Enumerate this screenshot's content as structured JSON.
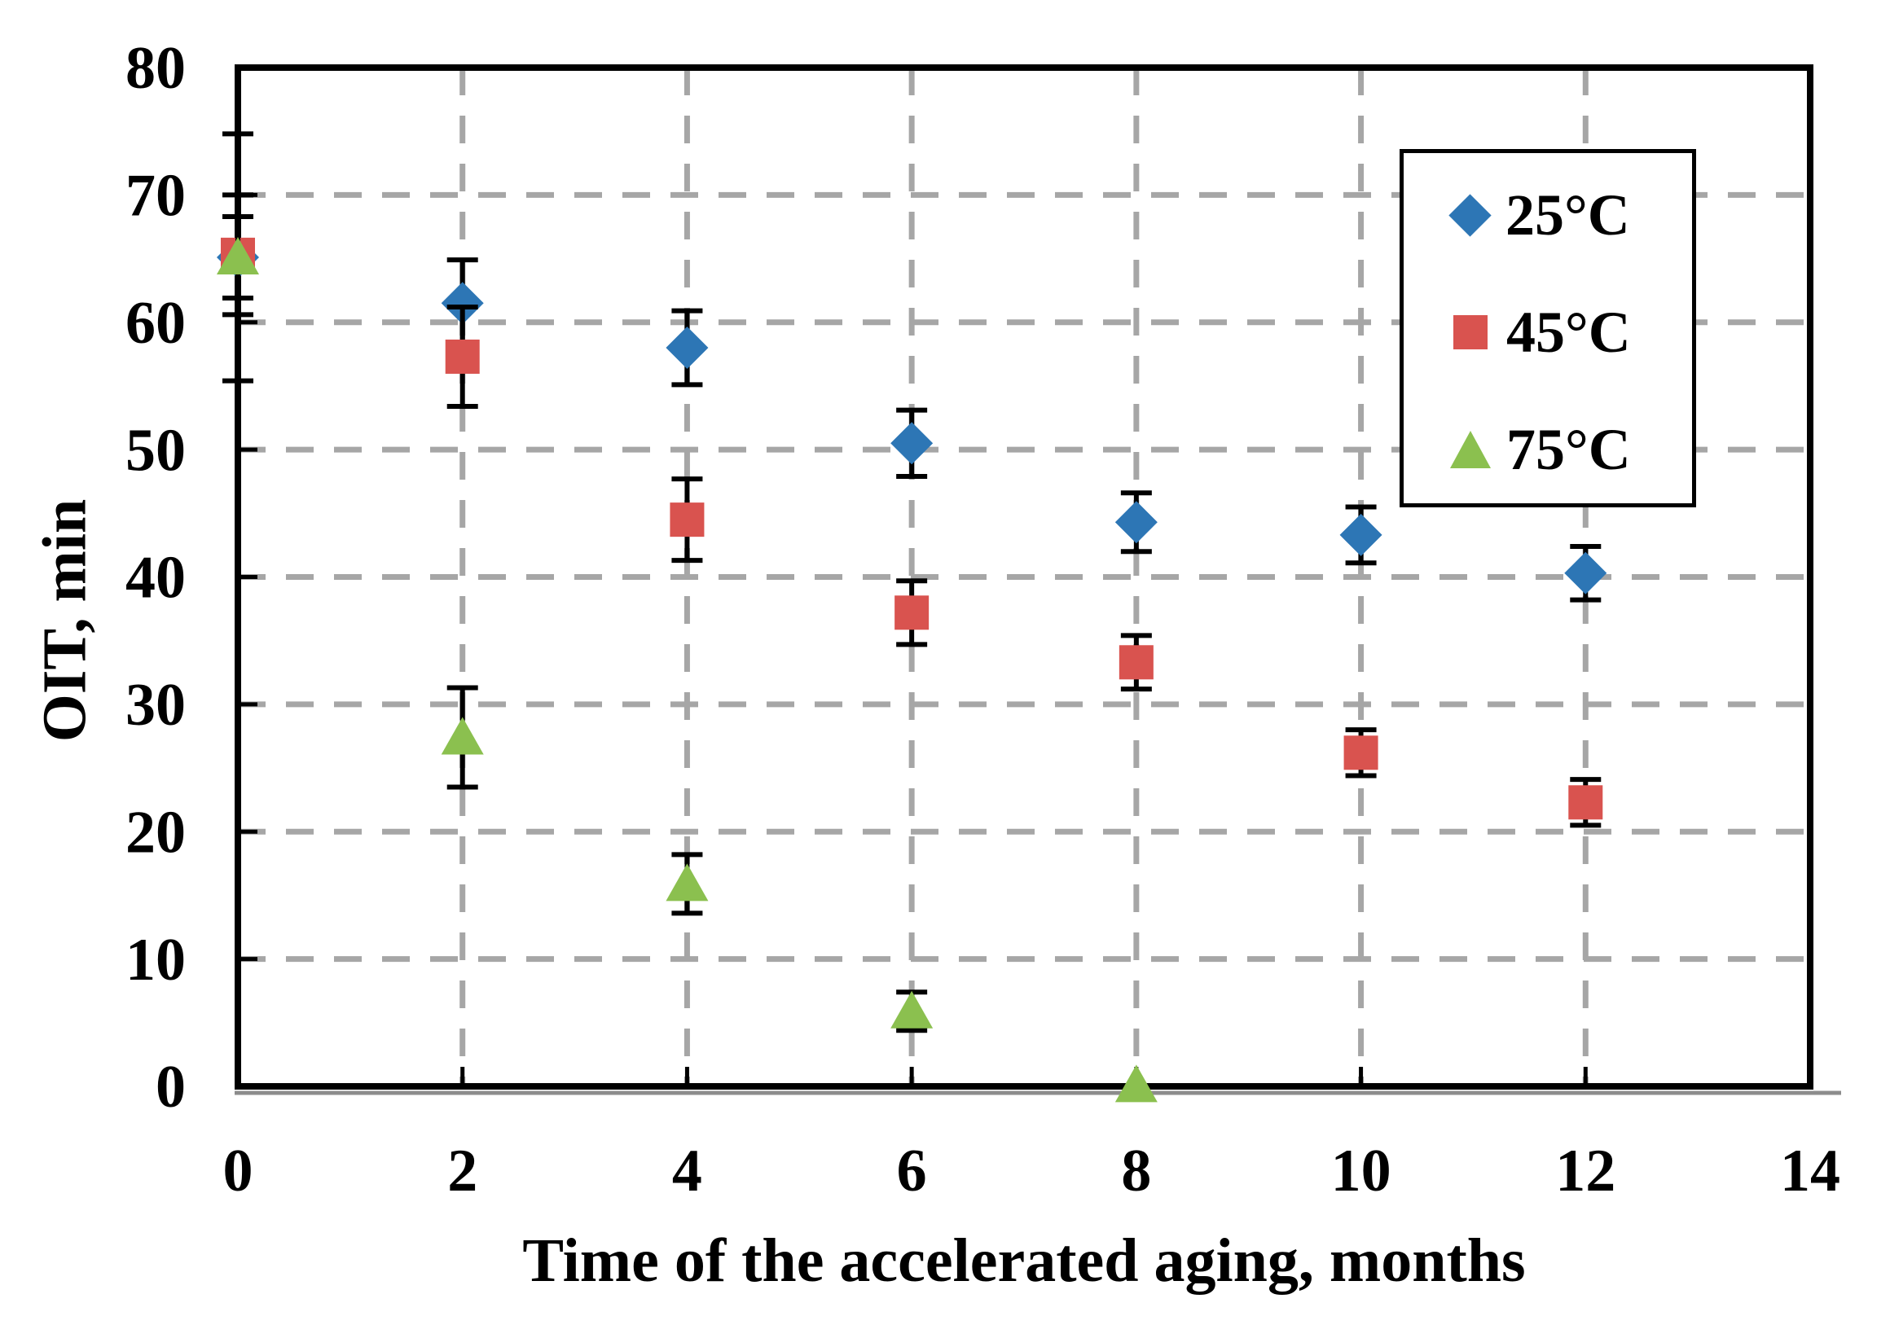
{
  "chart_data": {
    "type": "scatter",
    "title": "",
    "xlabel": "Time of the accelerated aging, months",
    "ylabel": "OIT, min",
    "xlim": [
      0,
      14
    ],
    "ylim": [
      0,
      80
    ],
    "x_ticks": [
      0,
      2,
      4,
      6,
      8,
      10,
      12,
      14
    ],
    "y_ticks": [
      0,
      10,
      20,
      30,
      40,
      50,
      60,
      70,
      80
    ],
    "grid": "dashed gray lines at every major tick, on",
    "legend_position": "upper-right inside plot",
    "error_bars": "vertical, black, with caps",
    "series": [
      {
        "name": "25°C",
        "marker": "diamond",
        "color": "#2d76b5",
        "x": [
          0,
          2,
          4,
          6,
          8,
          10,
          12
        ],
        "y": [
          65.1,
          61.5,
          58.0,
          50.5,
          44.3,
          43.3,
          40.3
        ],
        "y_err": [
          3.2,
          3.4,
          2.9,
          2.6,
          2.3,
          2.2,
          2.1
        ]
      },
      {
        "name": "45°C",
        "marker": "square",
        "color": "#d9534f",
        "x": [
          0,
          2,
          4,
          6,
          8,
          10,
          12
        ],
        "y": [
          65.3,
          57.3,
          44.5,
          37.2,
          33.3,
          26.2,
          22.3
        ],
        "y_err": [
          4.7,
          3.9,
          3.2,
          2.5,
          2.1,
          1.8,
          1.8
        ]
      },
      {
        "name": "75°C",
        "marker": "triangle",
        "color": "#8bc04f",
        "x": [
          0,
          2,
          4,
          6,
          8
        ],
        "y": [
          65.1,
          27.4,
          15.9,
          5.9,
          0.1
        ],
        "y_err": [
          9.7,
          3.9,
          2.3,
          1.5,
          0
        ]
      }
    ],
    "colors": {
      "gridline": "#a6a6a6",
      "axis_frame": "#000000",
      "error_bar": "#000000",
      "axis_shadow": "#8c8c8c",
      "text": "#000000",
      "background": "#ffffff"
    }
  }
}
